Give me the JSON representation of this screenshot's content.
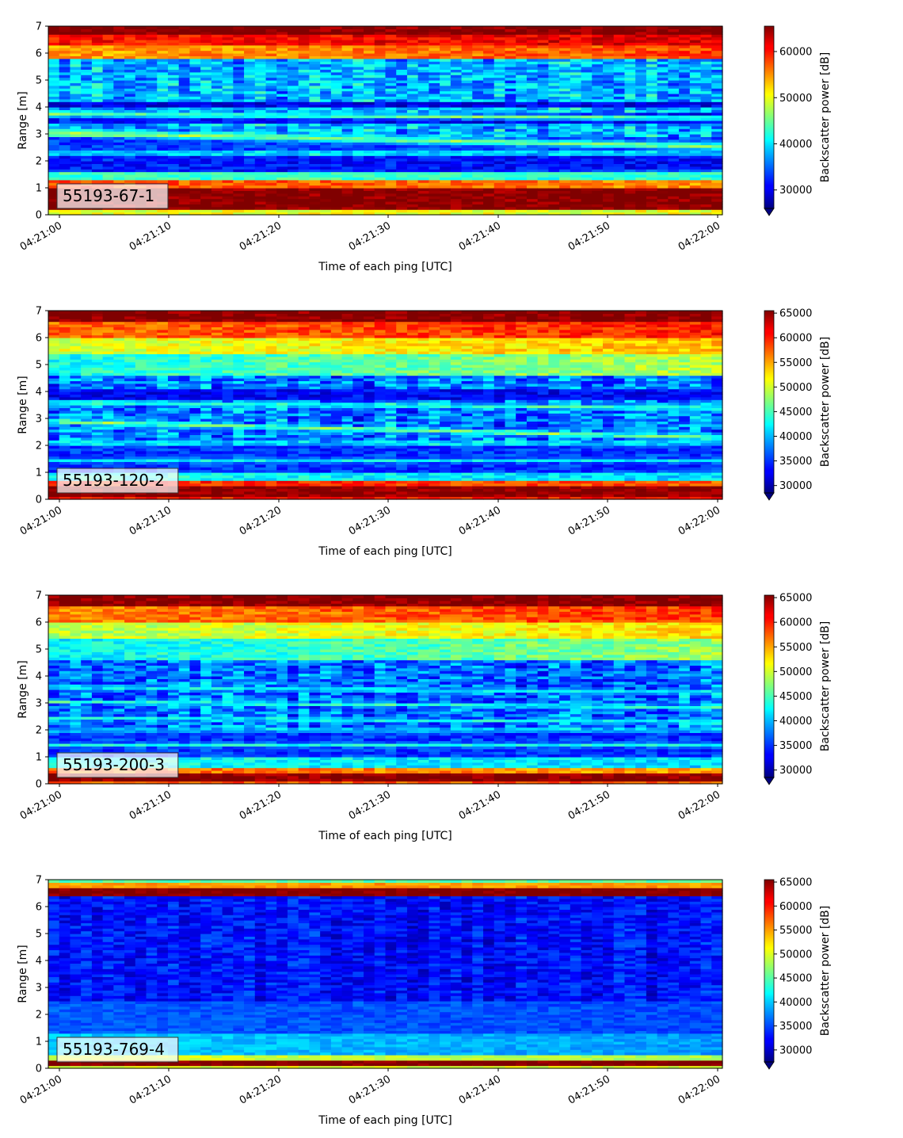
{
  "chart_data": [
    {
      "type": "heatmap",
      "label": "55193-67-1",
      "xlabel": "Time of each ping [UTC]",
      "ylabel": "Range [m]",
      "colorbar_label": "Backscatter power [dB]",
      "colormap": "jet",
      "x_ticks": [
        "04:21:00",
        "04:21:10",
        "04:21:20",
        "04:21:30",
        "04:21:40",
        "04:21:50",
        "04:22:00"
      ],
      "y_ticks": [
        0,
        1,
        2,
        3,
        4,
        5,
        6,
        7
      ],
      "ylim": [
        0,
        7
      ],
      "clim": [
        26000,
        65500
      ],
      "colorbar_ticks": [
        30000,
        40000,
        50000,
        60000
      ],
      "colorbar_extend": "min",
      "background_level": 38000,
      "noise": 9000,
      "bands": [
        {
          "r0": 0.0,
          "r1": 0.22,
          "start": 50000,
          "end": 50000
        },
        {
          "r0": 0.22,
          "r1": 1.05,
          "start": 65500,
          "end": 65500
        },
        {
          "r0": 1.05,
          "r1": 1.3,
          "start": 58000,
          "end": 55000
        },
        {
          "r0": 1.3,
          "r1": 1.6,
          "start": 44000,
          "end": 42000
        },
        {
          "r0": 1.6,
          "r1": 2.2,
          "start": 32000,
          "end": 31000
        },
        {
          "r0": 2.4,
          "r1": 2.9,
          "start": 33000,
          "end": 34000
        },
        {
          "r0": 3.4,
          "r1": 3.8,
          "start": 32000,
          "end": 30000
        },
        {
          "r0": 4.0,
          "r1": 4.2,
          "start": 30000,
          "end": 30000
        },
        {
          "r0": 5.8,
          "r1": 6.3,
          "start": 54000,
          "end": 58000
        },
        {
          "r0": 6.3,
          "r1": 6.7,
          "start": 60000,
          "end": 62000
        },
        {
          "r0": 6.7,
          "r1": 7.0,
          "start": 65500,
          "end": 65500
        }
      ],
      "layers": [
        {
          "r_start": 3.75,
          "r_end": 3.6,
          "width": 0.15,
          "level": 46000
        },
        {
          "r_start": 3.05,
          "r_end": 2.55,
          "width": 0.18,
          "level": 47000
        },
        {
          "r_start": 2.3,
          "r_end": 2.3,
          "width": 0.1,
          "level": 40000
        },
        {
          "r_start": 1.45,
          "r_end": 1.55,
          "width": 0.15,
          "level": 43000
        }
      ]
    },
    {
      "type": "heatmap",
      "label": "55193-120-2",
      "xlabel": "Time of each ping [UTC]",
      "ylabel": "Range [m]",
      "colorbar_label": "Backscatter power [dB]",
      "colormap": "jet",
      "x_ticks": [
        "04:21:00",
        "04:21:10",
        "04:21:20",
        "04:21:30",
        "04:21:40",
        "04:21:50",
        "04:22:00"
      ],
      "y_ticks": [
        0,
        1,
        2,
        3,
        4,
        5,
        6,
        7
      ],
      "ylim": [
        0,
        7
      ],
      "clim": [
        28500,
        65500
      ],
      "colorbar_ticks": [
        30000,
        35000,
        40000,
        45000,
        50000,
        55000,
        60000,
        65000
      ],
      "colorbar_extend": "min",
      "background_level": 37500,
      "noise": 8500,
      "bands": [
        {
          "r0": 0.0,
          "r1": 0.15,
          "start": 60000,
          "end": 60000
        },
        {
          "r0": 0.15,
          "r1": 0.55,
          "start": 65500,
          "end": 65500
        },
        {
          "r0": 0.55,
          "r1": 0.75,
          "start": 60000,
          "end": 58000
        },
        {
          "r0": 0.75,
          "r1": 1.0,
          "start": 43000,
          "end": 41000
        },
        {
          "r0": 1.0,
          "r1": 2.0,
          "start": 35000,
          "end": 35000
        },
        {
          "r0": 3.7,
          "r1": 4.1,
          "start": 33000,
          "end": 33000
        },
        {
          "r0": 4.6,
          "r1": 5.4,
          "start": 43000,
          "end": 49000
        },
        {
          "r0": 5.4,
          "r1": 6.0,
          "start": 50000,
          "end": 54000
        },
        {
          "r0": 6.0,
          "r1": 6.6,
          "start": 57000,
          "end": 60000
        },
        {
          "r0": 6.6,
          "r1": 7.0,
          "start": 65500,
          "end": 65500
        }
      ],
      "layers": [
        {
          "r_start": 3.6,
          "r_end": 3.4,
          "width": 0.12,
          "level": 45000
        },
        {
          "r_start": 2.9,
          "r_end": 2.3,
          "width": 0.12,
          "level": 48000
        },
        {
          "r_start": 2.1,
          "r_end": 2.1,
          "width": 0.08,
          "level": 45000
        },
        {
          "r_start": 1.45,
          "r_end": 1.45,
          "width": 0.12,
          "level": 42000
        }
      ]
    },
    {
      "type": "heatmap",
      "label": "55193-200-3",
      "xlabel": "Time of each ping [UTC]",
      "ylabel": "Range [m]",
      "colorbar_label": "Backscatter power [dB]",
      "colormap": "jet",
      "x_ticks": [
        "04:21:00",
        "04:21:10",
        "04:21:20",
        "04:21:30",
        "04:21:40",
        "04:21:50",
        "04:22:00"
      ],
      "y_ticks": [
        0,
        1,
        2,
        3,
        4,
        5,
        6,
        7
      ],
      "ylim": [
        0,
        7
      ],
      "clim": [
        28500,
        65500
      ],
      "colorbar_ticks": [
        30000,
        35000,
        40000,
        45000,
        50000,
        55000,
        60000,
        65000
      ],
      "colorbar_extend": "min",
      "background_level": 37000,
      "noise": 8500,
      "bands": [
        {
          "r0": 0.0,
          "r1": 0.12,
          "start": 58000,
          "end": 58000
        },
        {
          "r0": 0.12,
          "r1": 0.45,
          "start": 65500,
          "end": 65500
        },
        {
          "r0": 0.45,
          "r1": 0.65,
          "start": 57000,
          "end": 55000
        },
        {
          "r0": 0.65,
          "r1": 1.0,
          "start": 43000,
          "end": 41000
        },
        {
          "r0": 1.0,
          "r1": 2.0,
          "start": 35000,
          "end": 35000
        },
        {
          "r0": 4.6,
          "r1": 5.4,
          "start": 42000,
          "end": 48000
        },
        {
          "r0": 5.4,
          "r1": 6.0,
          "start": 49000,
          "end": 53000
        },
        {
          "r0": 6.0,
          "r1": 6.6,
          "start": 56000,
          "end": 59000
        },
        {
          "r0": 6.6,
          "r1": 7.0,
          "start": 65500,
          "end": 65500
        }
      ],
      "layers": [
        {
          "r_start": 3.6,
          "r_end": 3.4,
          "width": 0.12,
          "level": 43000
        },
        {
          "r_start": 3.05,
          "r_end": 2.85,
          "width": 0.1,
          "level": 45000
        },
        {
          "r_start": 2.45,
          "r_end": 2.3,
          "width": 0.1,
          "level": 44000
        },
        {
          "r_start": 2.0,
          "r_end": 2.0,
          "width": 0.08,
          "level": 45000
        },
        {
          "r_start": 1.45,
          "r_end": 1.45,
          "width": 0.12,
          "level": 43000
        }
      ]
    },
    {
      "type": "heatmap",
      "label": "55193-769-4",
      "xlabel": "Time of each ping [UTC]",
      "ylabel": "Range [m]",
      "colorbar_label": "Backscatter power [dB]",
      "colormap": "jet",
      "x_ticks": [
        "04:21:00",
        "04:21:10",
        "04:21:20",
        "04:21:30",
        "04:21:40",
        "04:21:50",
        "04:22:00"
      ],
      "y_ticks": [
        0,
        1,
        2,
        3,
        4,
        5,
        6,
        7
      ],
      "ylim": [
        0,
        7
      ],
      "clim": [
        27500,
        65500
      ],
      "colorbar_ticks": [
        30000,
        35000,
        40000,
        45000,
        50000,
        55000,
        60000,
        65000
      ],
      "colorbar_extend": "min",
      "background_level": 32500,
      "noise": 5000,
      "bands": [
        {
          "r0": 0.0,
          "r1": 0.1,
          "start": 50000,
          "end": 50000
        },
        {
          "r0": 0.1,
          "r1": 0.3,
          "start": 65500,
          "end": 65500
        },
        {
          "r0": 0.3,
          "r1": 0.5,
          "start": 50000,
          "end": 48000
        },
        {
          "r0": 0.5,
          "r1": 1.3,
          "start": 40000,
          "end": 38000
        },
        {
          "r0": 1.3,
          "r1": 2.5,
          "start": 35500,
          "end": 35000
        },
        {
          "r0": 6.45,
          "r1": 6.75,
          "start": 65500,
          "end": 65500
        },
        {
          "r0": 6.75,
          "r1": 6.88,
          "start": 55000,
          "end": 55000
        },
        {
          "r0": 6.88,
          "r1": 7.0,
          "start": 45000,
          "end": 45000
        }
      ],
      "layers": []
    }
  ]
}
